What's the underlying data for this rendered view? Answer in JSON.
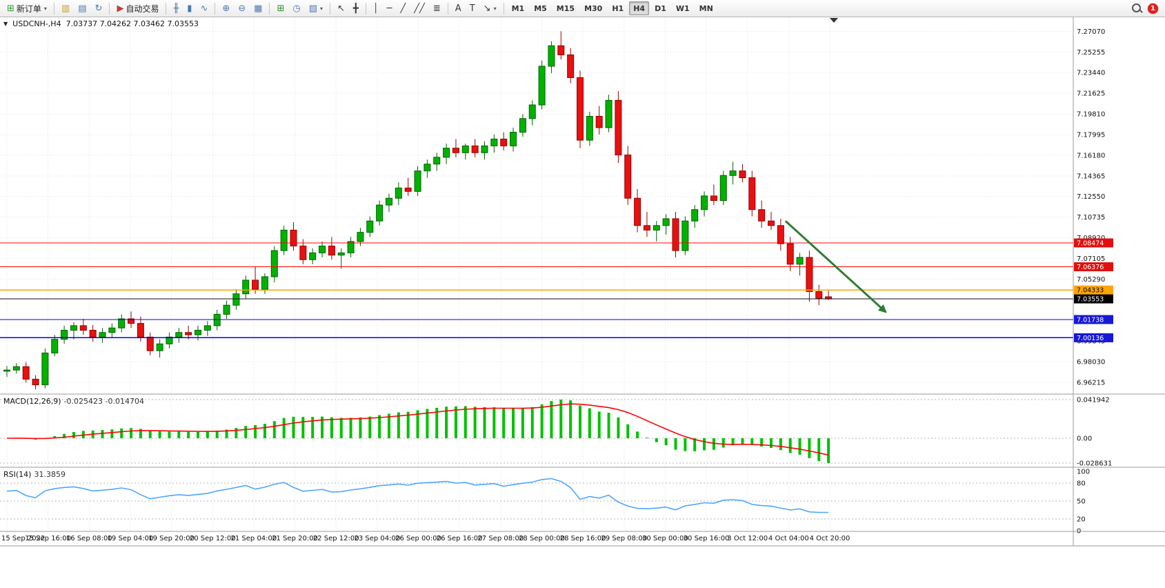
{
  "toolbar": {
    "notification_count": "1",
    "groups": [
      {
        "items": [
          {
            "name": "new-order-button",
            "glyph": "⊞",
            "glyph_color": "#2E9B2E",
            "label": "新订单",
            "caret": true
          }
        ]
      },
      {
        "items": [
          {
            "name": "new-chart-icon",
            "glyph": "▥",
            "glyph_color": "#C89A20"
          },
          {
            "name": "profiles-icon",
            "glyph": "▤",
            "glyph_color": "#4A78B0"
          },
          {
            "name": "refresh-icon",
            "glyph": "↻",
            "glyph_color": "#4A78B0"
          }
        ]
      },
      {
        "items": [
          {
            "name": "autotrading-button",
            "glyph": "▶",
            "glyph_color": "#C43C3C",
            "label": "自动交易"
          }
        ]
      },
      {
        "items": [
          {
            "name": "bars-chart-icon",
            "glyph": "╫",
            "glyph_color": "#4A78B0"
          },
          {
            "name": "candlestick-chart-icon",
            "glyph": "▮",
            "glyph_color": "#4A78B0"
          },
          {
            "name": "line-chart-icon",
            "glyph": "∿",
            "glyph_color": "#4A78B0"
          }
        ]
      },
      {
        "items": [
          {
            "name": "zoom-in-icon",
            "glyph": "⊕",
            "glyph_color": "#4A78B0"
          },
          {
            "name": "zoom-out-icon",
            "glyph": "⊖",
            "glyph_color": "#4A78B0"
          },
          {
            "name": "tile-windows-icon",
            "glyph": "▦",
            "glyph_color": "#4A78B0"
          }
        ]
      },
      {
        "items": [
          {
            "name": "new-window-icon",
            "glyph": "⊞",
            "glyph_color": "#2E8B2E"
          },
          {
            "name": "history-clock-icon",
            "glyph": "◷",
            "glyph_color": "#4A78B0"
          },
          {
            "name": "templates-icon",
            "glyph": "▧",
            "glyph_color": "#4A78B0",
            "caret": true
          }
        ]
      },
      {
        "items": [
          {
            "name": "cursor-icon",
            "glyph": "↖",
            "glyph_color": "#3A3A3A"
          },
          {
            "name": "crosshair-icon",
            "glyph": "╋",
            "glyph_color": "#3A3A3A"
          }
        ]
      },
      {
        "items": [
          {
            "name": "vertical-line-icon",
            "glyph": "│",
            "glyph_color": "#3A3A3A"
          },
          {
            "name": "horizontal-line-icon",
            "glyph": "─",
            "glyph_color": "#3A3A3A"
          },
          {
            "name": "trendline-icon",
            "glyph": "╱",
            "glyph_color": "#3A3A3A"
          },
          {
            "name": "channel-icon",
            "glyph": "╱╱",
            "glyph_color": "#3A3A3A"
          },
          {
            "name": "fibonacci-icon",
            "glyph": "≣",
            "glyph_color": "#3A3A3A"
          }
        ]
      },
      {
        "items": [
          {
            "name": "text-icon",
            "glyph": "A",
            "glyph_color": "#3A3A3A"
          },
          {
            "name": "text-label-icon",
            "glyph": "T",
            "glyph_color": "#3A3A3A"
          },
          {
            "name": "arrows-icon",
            "glyph": "↘",
            "glyph_color": "#3A3A3A",
            "caret": true
          }
        ]
      },
      {
        "items": [
          {
            "name": "timeframe-m1-button",
            "text": "M1"
          },
          {
            "name": "timeframe-m5-button",
            "text": "M5"
          },
          {
            "name": "timeframe-m15-button",
            "text": "M15"
          },
          {
            "name": "timeframe-m30-button",
            "text": "M30"
          },
          {
            "name": "timeframe-h1-button",
            "text": "H1"
          },
          {
            "name": "timeframe-h4-button",
            "text": "H4",
            "active": true
          },
          {
            "name": "timeframe-d1-button",
            "text": "D1"
          },
          {
            "name": "timeframe-w1-button",
            "text": "W1"
          },
          {
            "name": "timeframe-mn-button",
            "text": "MN"
          }
        ]
      }
    ]
  },
  "chart_header": {
    "caret_glyph": "▼",
    "title": "USDCNH-,H4",
    "ohlc_text": "7.03737 7.04262 7.03462 7.03553"
  },
  "chart_data": {
    "type": "candlestick",
    "symbol": "USDCNH-",
    "timeframe": "H4",
    "title": "USDCNH-,H4",
    "ohlc_display": {
      "open": "7.03737",
      "high": "7.04262",
      "low": "7.03462",
      "close": "7.03553"
    },
    "bid_price": 7.03553,
    "y_axis_labels": [
      "7.27070",
      "7.25255",
      "7.23440",
      "7.21625",
      "7.19810",
      "7.17995",
      "7.16180",
      "7.14365",
      "7.12550",
      "7.10735",
      "7.08920",
      "7.07105",
      "7.05290",
      "7.03475",
      "7.01660",
      "6.99845",
      "6.98030",
      "6.96215"
    ],
    "x_labels": [
      "15 Sep 2022",
      "15 Sep 16:00",
      "16 Sep 08:00",
      "19 Sep 04:00",
      "19 Sep 20:00",
      "20 Sep 12:00",
      "21 Sep 04:00",
      "21 Sep 20:00",
      "22 Sep 12:00",
      "23 Sep 04:00",
      "26 Sep 00:00",
      "26 Sep 16:00",
      "27 Sep 08:00",
      "28 Sep 00:00",
      "28 Sep 16:00",
      "29 Sep 08:00",
      "30 Sep 00:00",
      "30 Sep 16:00",
      "3 Oct 12:00",
      "4 Oct 04:00",
      "4 Oct 20:00"
    ],
    "candles": [
      [
        6.972,
        6.9765,
        6.967,
        6.973
      ],
      [
        6.973,
        6.979,
        6.97,
        6.976
      ],
      [
        6.976,
        6.98,
        6.962,
        6.965
      ],
      [
        6.965,
        6.9685,
        6.956,
        6.96
      ],
      [
        6.96,
        6.992,
        6.957,
        6.988
      ],
      [
        6.988,
        7.004,
        6.985,
        7.0
      ],
      [
        7.0,
        7.012,
        6.996,
        7.008
      ],
      [
        7.008,
        7.015,
        7.0,
        7.012
      ],
      [
        7.012,
        7.018,
        7.004,
        7.008
      ],
      [
        7.008,
        7.0125,
        6.998,
        7.002
      ],
      [
        7.002,
        7.01,
        6.997,
        7.006
      ],
      [
        7.006,
        7.014,
        7.001,
        7.01
      ],
      [
        7.01,
        7.022,
        7.006,
        7.018
      ],
      [
        7.018,
        7.0245,
        7.01,
        7.014
      ],
      [
        7.014,
        7.02,
        6.998,
        7.002
      ],
      [
        7.002,
        7.006,
        6.986,
        6.99
      ],
      [
        6.99,
        7.0,
        6.984,
        6.996
      ],
      [
        6.996,
        7.006,
        6.992,
        7.002
      ],
      [
        7.002,
        7.01,
        6.997,
        7.006
      ],
      [
        7.006,
        7.012,
        7.0,
        7.004
      ],
      [
        7.004,
        7.012,
        6.999,
        7.008
      ],
      [
        7.008,
        7.016,
        7.003,
        7.012
      ],
      [
        7.012,
        7.026,
        7.008,
        7.022
      ],
      [
        7.022,
        7.034,
        7.018,
        7.03
      ],
      [
        7.03,
        7.044,
        7.026,
        7.04
      ],
      [
        7.04,
        7.056,
        7.036,
        7.052
      ],
      [
        7.052,
        7.064,
        7.04,
        7.044
      ],
      [
        7.044,
        7.058,
        7.04,
        7.055
      ],
      [
        7.055,
        7.082,
        7.05,
        7.078
      ],
      [
        7.078,
        7.1,
        7.074,
        7.096
      ],
      [
        7.096,
        7.103,
        7.078,
        7.082
      ],
      [
        7.082,
        7.088,
        7.066,
        7.07
      ],
      [
        7.07,
        7.08,
        7.066,
        7.076
      ],
      [
        7.076,
        7.086,
        7.072,
        7.082
      ],
      [
        7.082,
        7.09,
        7.07,
        7.074
      ],
      [
        7.074,
        7.08,
        7.062,
        7.076
      ],
      [
        7.076,
        7.09,
        7.072,
        7.086
      ],
      [
        7.086,
        7.098,
        7.082,
        7.094
      ],
      [
        7.094,
        7.108,
        7.09,
        7.104
      ],
      [
        7.104,
        7.122,
        7.1,
        7.118
      ],
      [
        7.118,
        7.128,
        7.112,
        7.124
      ],
      [
        7.124,
        7.138,
        7.118,
        7.133
      ],
      [
        7.133,
        7.142,
        7.126,
        7.13
      ],
      [
        7.13,
        7.152,
        7.126,
        7.148
      ],
      [
        7.148,
        7.158,
        7.142,
        7.154
      ],
      [
        7.154,
        7.164,
        7.148,
        7.16
      ],
      [
        7.16,
        7.172,
        7.154,
        7.168
      ],
      [
        7.168,
        7.176,
        7.16,
        7.164
      ],
      [
        7.164,
        7.172,
        7.158,
        7.17
      ],
      [
        7.17,
        7.176,
        7.16,
        7.164
      ],
      [
        7.164,
        7.174,
        7.158,
        7.17
      ],
      [
        7.17,
        7.18,
        7.164,
        7.176
      ],
      [
        7.176,
        7.182,
        7.166,
        7.17
      ],
      [
        7.17,
        7.186,
        7.165,
        7.182
      ],
      [
        7.182,
        7.198,
        7.178,
        7.194
      ],
      [
        7.194,
        7.21,
        7.188,
        7.206
      ],
      [
        7.206,
        7.245,
        7.202,
        7.24
      ],
      [
        7.24,
        7.262,
        7.234,
        7.258
      ],
      [
        7.258,
        7.2707,
        7.246,
        7.25
      ],
      [
        7.25,
        7.256,
        7.225,
        7.23
      ],
      [
        7.23,
        7.236,
        7.168,
        7.175
      ],
      [
        7.175,
        7.2,
        7.17,
        7.196
      ],
      [
        7.196,
        7.205,
        7.18,
        7.186
      ],
      [
        7.186,
        7.215,
        7.182,
        7.21
      ],
      [
        7.21,
        7.218,
        7.155,
        7.162
      ],
      [
        7.162,
        7.17,
        7.118,
        7.124
      ],
      [
        7.124,
        7.132,
        7.094,
        7.1
      ],
      [
        7.1,
        7.112,
        7.09,
        7.096
      ],
      [
        7.096,
        7.104,
        7.086,
        7.1
      ],
      [
        7.1,
        7.11,
        7.092,
        7.106
      ],
      [
        7.106,
        7.112,
        7.072,
        7.078
      ],
      [
        7.078,
        7.108,
        7.074,
        7.104
      ],
      [
        7.104,
        7.118,
        7.098,
        7.114
      ],
      [
        7.114,
        7.13,
        7.108,
        7.126
      ],
      [
        7.126,
        7.136,
        7.118,
        7.122
      ],
      [
        7.122,
        7.148,
        7.118,
        7.144
      ],
      [
        7.144,
        7.156,
        7.136,
        7.148
      ],
      [
        7.148,
        7.154,
        7.138,
        7.142
      ],
      [
        7.142,
        7.148,
        7.108,
        7.114
      ],
      [
        7.114,
        7.122,
        7.098,
        7.104
      ],
      [
        7.104,
        7.112,
        7.096,
        7.1
      ],
      [
        7.1,
        7.106,
        7.078,
        7.084
      ],
      [
        7.084,
        7.09,
        7.06,
        7.066
      ],
      [
        7.066,
        7.076,
        7.056,
        7.072
      ],
      [
        7.072,
        7.078,
        7.033,
        7.042
      ],
      [
        7.042,
        7.048,
        7.03,
        7.036
      ],
      [
        7.0374,
        7.0426,
        7.0346,
        7.0355
      ]
    ],
    "hlines": [
      {
        "price": 7.08474,
        "label": "7.08474",
        "color": "#FF0000",
        "tag_bg": "#E01010",
        "tag_text": "#FFFFFF"
      },
      {
        "price": 7.06376,
        "label": "7.06376",
        "color": "#FF0000",
        "tag_bg": "#E01010",
        "tag_text": "#FFFFFF"
      },
      {
        "price": 7.04333,
        "label": "7.04333",
        "color": "#FFA500",
        "tag_bg": "#FFA500",
        "tag_text": "#000000"
      },
      {
        "price": 7.03553,
        "label": "7.03553",
        "color": "#111111",
        "tag_bg": "#000000",
        "tag_text": "#FFFFFF"
      },
      {
        "price": 7.01738,
        "label": "7.01738",
        "color": "#0000FF",
        "tag_bg": "#1818D8",
        "tag_text": "#FFFFFF"
      },
      {
        "price": 7.00136,
        "label": "7.00136",
        "color": "#0000FF",
        "tag_bg": "#1818D8",
        "tag_text": "#FFFFFF"
      }
    ],
    "trend_arrow": {
      "x1_index": 81.5,
      "price1": 7.104,
      "x2_index": 92,
      "price2": 7.024,
      "color": "#2E7D32",
      "width": 3
    },
    "macd": {
      "label": "MACD(12,26,9)",
      "values": "-0.025423 -0.014704",
      "axis_labels": [
        "0.041942",
        "0.00",
        "-0.028631"
      ],
      "params": {
        "fast": 12,
        "slow": 26,
        "signal": 9
      }
    },
    "rsi": {
      "label": "RSI(14)",
      "value": "31.3859",
      "period": 14,
      "axis_labels": [
        "100",
        "80",
        "50",
        "20",
        "0"
      ],
      "levels": [
        80,
        50,
        20
      ]
    },
    "colors": {
      "up": "#00B200",
      "up_dark": "#006000",
      "down": "#E81010",
      "down_dark": "#980000",
      "macd_hist": "#00C000",
      "macd_signal": "#FF0000",
      "rsi_line": "#4DA6FF",
      "grid": "#E3E3E3"
    }
  }
}
